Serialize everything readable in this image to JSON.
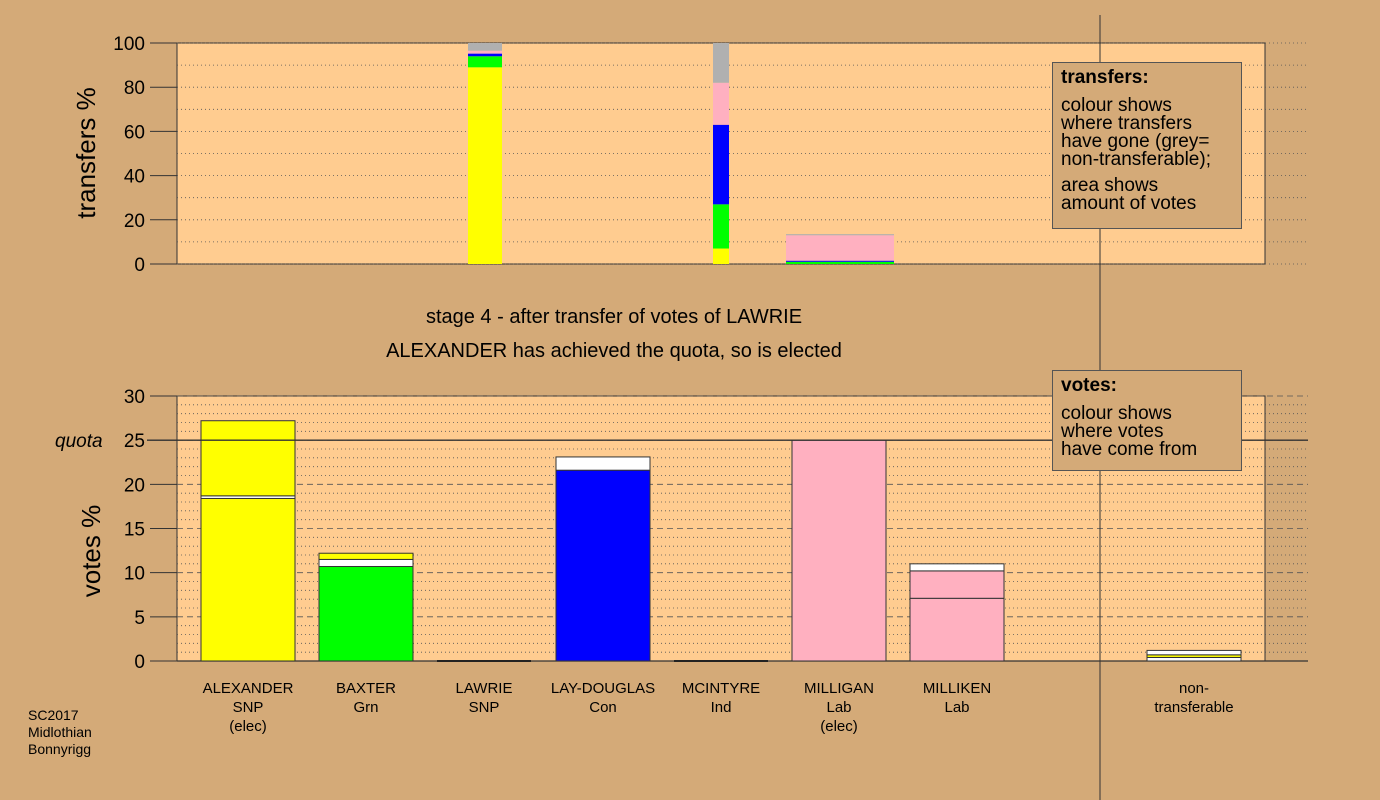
{
  "chart_data": [
    {
      "type": "bar",
      "stacked": true,
      "ylabel": "transfers %",
      "ylim": [
        0,
        100
      ],
      "yticks": [
        0,
        20,
        40,
        60,
        80,
        100
      ],
      "grid": true,
      "bars": [
        {
          "candidate": "LAWRIE",
          "segments": [
            {
              "color": "#ffff00",
              "value": 89
            },
            {
              "color": "#00ff00",
              "value": 5
            },
            {
              "color": "#0000ff",
              "value": 1.2
            },
            {
              "color": "#ffb0c0",
              "value": 1.3
            },
            {
              "color": "#b0b0b0",
              "value": 3.5
            }
          ]
        },
        {
          "candidate": "MCINTYRE",
          "segments": [
            {
              "color": "#ffff00",
              "value": 7
            },
            {
              "color": "#00ff00",
              "value": 20
            },
            {
              "color": "#0000ff",
              "value": 36
            },
            {
              "color": "#ffb0c0",
              "value": 19
            },
            {
              "color": "#b0b0b0",
              "value": 18
            }
          ]
        },
        {
          "candidate": "MILLIGAN",
          "segments": [
            {
              "color": "#00ff00",
              "value": 1
            },
            {
              "color": "#0000ff",
              "value": 0.5
            },
            {
              "color": "#ffb0c0",
              "value": 11.5
            },
            {
              "color": "#b0b0b0",
              "value": 0.5
            }
          ]
        }
      ],
      "legend": {
        "heading": "transfers:",
        "lines_a": [
          "colour shows",
          "where transfers",
          "have gone (grey=",
          "non-transferable);"
        ],
        "lines_b": [
          "area shows",
          "amount of votes"
        ]
      }
    },
    {
      "type": "bar",
      "stacked": true,
      "title_lines": [
        "stage 4 - after transfer of votes of LAWRIE",
        "ALEXANDER has achieved the quota, so is elected"
      ],
      "ylabel": "votes %",
      "ylim": [
        0,
        30
      ],
      "yticks": [
        0,
        5,
        10,
        15,
        20,
        25,
        30
      ],
      "quota": 25,
      "quota_label": "quota",
      "grid": true,
      "categories": [
        {
          "lines": [
            "ALEXANDER",
            "SNP",
            "(elec)"
          ]
        },
        {
          "lines": [
            "BAXTER",
            "Grn"
          ]
        },
        {
          "lines": [
            "LAWRIE",
            "SNP"
          ]
        },
        {
          "lines": [
            "LAY-DOUGLAS",
            "Con"
          ]
        },
        {
          "lines": [
            "MCINTYRE",
            "Ind"
          ]
        },
        {
          "lines": [
            "MILLIGAN",
            "Lab",
            "(elec)"
          ]
        },
        {
          "lines": [
            "MILLIKEN",
            "Lab"
          ]
        },
        {
          "lines": [
            "non-",
            "transferable"
          ]
        }
      ],
      "bars": [
        {
          "candidate": "ALEXANDER",
          "segments": [
            {
              "color": "#ffff00",
              "value": 18.4
            },
            {
              "color": "#ffffff",
              "value": 0.3
            },
            {
              "color": "#ffff00",
              "value": 8.5
            }
          ]
        },
        {
          "candidate": "BAXTER",
          "segments": [
            {
              "color": "#00ff00",
              "value": 10.7
            },
            {
              "color": "#ffffff",
              "value": 0.8
            },
            {
              "color": "#ffff00",
              "value": 0.7
            }
          ]
        },
        {
          "candidate": "LAWRIE",
          "segments": []
        },
        {
          "candidate": "LAY-DOUGLAS",
          "segments": [
            {
              "color": "#0000ff",
              "value": 21.6
            },
            {
              "color": "#ffffff",
              "value": 1.5
            }
          ]
        },
        {
          "candidate": "MCINTYRE",
          "segments": []
        },
        {
          "candidate": "MILLIGAN",
          "segments": [
            {
              "color": "#ffb0c0",
              "value": 25.0
            }
          ]
        },
        {
          "candidate": "MILLIKEN",
          "segments": [
            {
              "color": "#ffb0c0",
              "value": 7.1
            },
            {
              "color": "#ffb0c0",
              "value": 3.1
            },
            {
              "color": "#ffffff",
              "value": 0.8
            }
          ]
        },
        {
          "candidate": "non-transferable",
          "segments": [
            {
              "color": "#ffffff",
              "value": 0.4
            },
            {
              "color": "#ffff00",
              "value": 0.3
            },
            {
              "color": "#ffffff",
              "value": 0.5
            }
          ]
        }
      ],
      "legend": {
        "heading": "votes:",
        "lines_a": [
          "colour shows",
          "where votes",
          "have come from"
        ]
      }
    }
  ],
  "footer": [
    "SC2017",
    "Midlothian",
    "Bonnyrigg"
  ],
  "colors": {
    "background": "#d4aa78",
    "plot_background": "#ffcc90"
  }
}
